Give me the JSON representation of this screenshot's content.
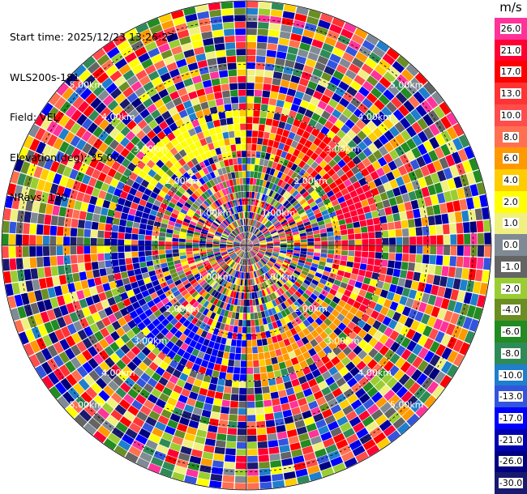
{
  "info": {
    "start_time": "Start time: 2025/12/23 13:26:27",
    "station": "WLS200s-181",
    "field": "Field: VEL",
    "elevation": "Elevation(deg): 35.00",
    "nrays": "NRays: 120"
  },
  "chart_data": {
    "type": "heatmap",
    "projection": "polar-ppi",
    "field": "VEL",
    "unit": "m/s",
    "nrays": 120,
    "range_rings_km": [
      "1.00km",
      "2.00km",
      "3.00km",
      "4.00km",
      "5.00km"
    ],
    "max_range_km": 5.4,
    "gates": 36,
    "colorbar": {
      "unit": "m/s",
      "levels": [
        {
          "label": "26.0",
          "color": "#ff3399"
        },
        {
          "label": "21.0",
          "color": "#ff0033"
        },
        {
          "label": "17.0",
          "color": "#ff0000"
        },
        {
          "label": "13.0",
          "color": "#ff3333"
        },
        {
          "label": "10.0",
          "color": "#ff4d4d"
        },
        {
          "label": "8.0",
          "color": "#ff7050"
        },
        {
          "label": "6.0",
          "color": "#ff9900"
        },
        {
          "label": "4.0",
          "color": "#ffcc00"
        },
        {
          "label": "2.0",
          "color": "#ffff00"
        },
        {
          "label": "1.0",
          "color": "#f0f080"
        },
        {
          "label": "0.0",
          "color": "#808a94"
        },
        {
          "label": "-1.0",
          "color": "#646464"
        },
        {
          "label": "-2.0",
          "color": "#9acd32"
        },
        {
          "label": "-4.0",
          "color": "#6b8e23"
        },
        {
          "label": "-6.0",
          "color": "#228b22"
        },
        {
          "label": "-8.0",
          "color": "#2e8b57"
        },
        {
          "label": "-10.0",
          "color": "#1e7fcc"
        },
        {
          "label": "-13.0",
          "color": "#3355dd"
        },
        {
          "label": "-17.0",
          "color": "#0000ff"
        },
        {
          "label": "-21.0",
          "color": "#0000b0"
        },
        {
          "label": "-26.0",
          "color": "#000080"
        },
        {
          "label": "-30.0",
          "color": "#191970"
        }
      ]
    },
    "outer_sector_pattern": [
      {
        "from_deg": 0,
        "to_deg": 60,
        "level": "17.0"
      },
      {
        "from_deg": 60,
        "to_deg": 120,
        "level": "21.0"
      },
      {
        "from_deg": 120,
        "to_deg": 180,
        "level": "6.0"
      },
      {
        "from_deg": 180,
        "to_deg": 240,
        "level": "-17.0"
      },
      {
        "from_deg": 240,
        "to_deg": 300,
        "level": "-21.0"
      },
      {
        "from_deg": 300,
        "to_deg": 360,
        "level": "2.0"
      }
    ]
  }
}
